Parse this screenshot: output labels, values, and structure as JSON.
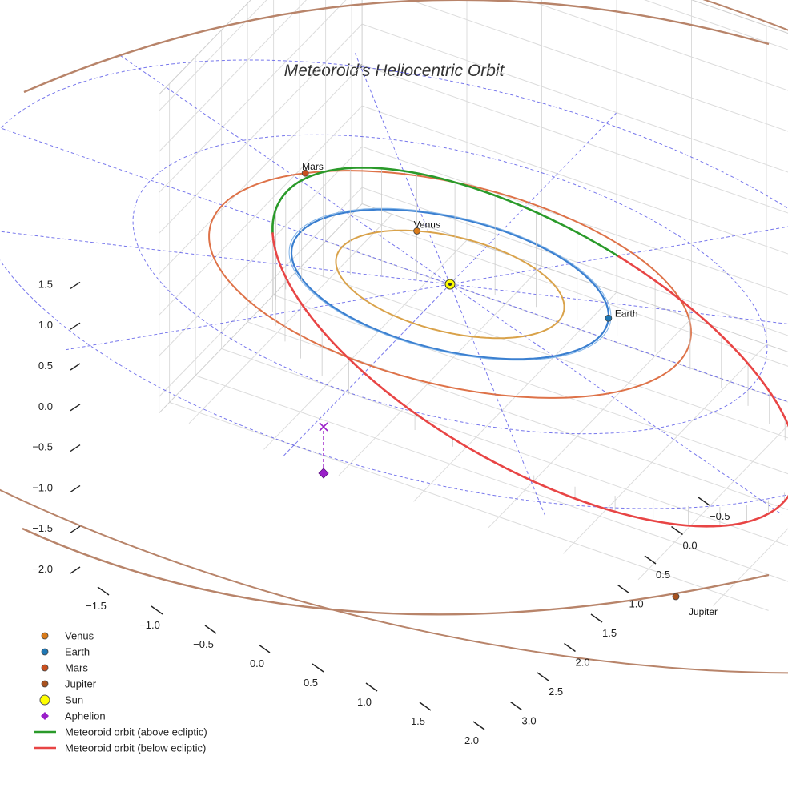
{
  "chart_data": {
    "type": "3d-orbit",
    "title": "Meteoroid's Heliocentric Orbit",
    "x_ticks": [
      -1.5,
      -1.0,
      -0.5,
      0.0,
      0.5,
      1.0,
      1.5,
      2.0
    ],
    "y_ticks": [
      -0.5,
      0.0,
      0.5,
      1.0,
      1.5,
      2.0,
      2.5,
      3.0
    ],
    "z_ticks": [
      -2.0,
      -1.5,
      -1.0,
      -0.5,
      0.0,
      0.5,
      1.0,
      1.5
    ],
    "xlim": [
      -1.7,
      2.3
    ],
    "ylim": [
      -0.7,
      3.2
    ],
    "zlim": [
      -2.2,
      1.7
    ],
    "planets": [
      {
        "name": "Venus",
        "orbit_radius_au": 0.72,
        "orbit_color": "#d9a24a",
        "marker_color": "#d97b1a"
      },
      {
        "name": "Earth",
        "orbit_radius_au": 1.0,
        "orbit_color": "#3a7fd0",
        "marker_color": "#1f77b4"
      },
      {
        "name": "Mars",
        "orbit_radius_au": 1.52,
        "orbit_color": "#de7248",
        "marker_color": "#c9501f"
      },
      {
        "name": "Jupiter",
        "orbit_radius_au": 5.2,
        "orbit_color": "#b8846a",
        "marker_color": "#a8521f"
      }
    ],
    "sun": {
      "label": "Sun",
      "color": "#ffff00"
    },
    "aphelion": {
      "label": "Aphelion",
      "color": "#9a1fc9"
    },
    "meteoroid": {
      "above_label": "Meteoroid orbit (above ecliptic)",
      "below_label": "Meteoroid orbit (below ecliptic)",
      "above_color": "#2a9a2a",
      "below_color": "#e84545"
    }
  },
  "legend": [
    {
      "key": "venus",
      "label": "Venus",
      "kind": "dot",
      "color": "#d97b1a"
    },
    {
      "key": "earth",
      "label": "Earth",
      "kind": "dot",
      "color": "#1f77b4"
    },
    {
      "key": "mars",
      "label": "Mars",
      "kind": "dot",
      "color": "#c9501f"
    },
    {
      "key": "jupiter",
      "label": "Jupiter",
      "kind": "dot",
      "color": "#a8521f"
    },
    {
      "key": "sun",
      "label": "Sun",
      "kind": "bigdot",
      "color": "#ffff00"
    },
    {
      "key": "aphelion",
      "label": "Aphelion",
      "kind": "diamond",
      "color": "#9a1fc9"
    },
    {
      "key": "above",
      "label": "Meteoroid orbit (above ecliptic)",
      "kind": "line",
      "color": "#2a9a2a"
    },
    {
      "key": "below",
      "label": "Meteoroid orbit (below ecliptic)",
      "kind": "line",
      "color": "#e84545"
    }
  ]
}
